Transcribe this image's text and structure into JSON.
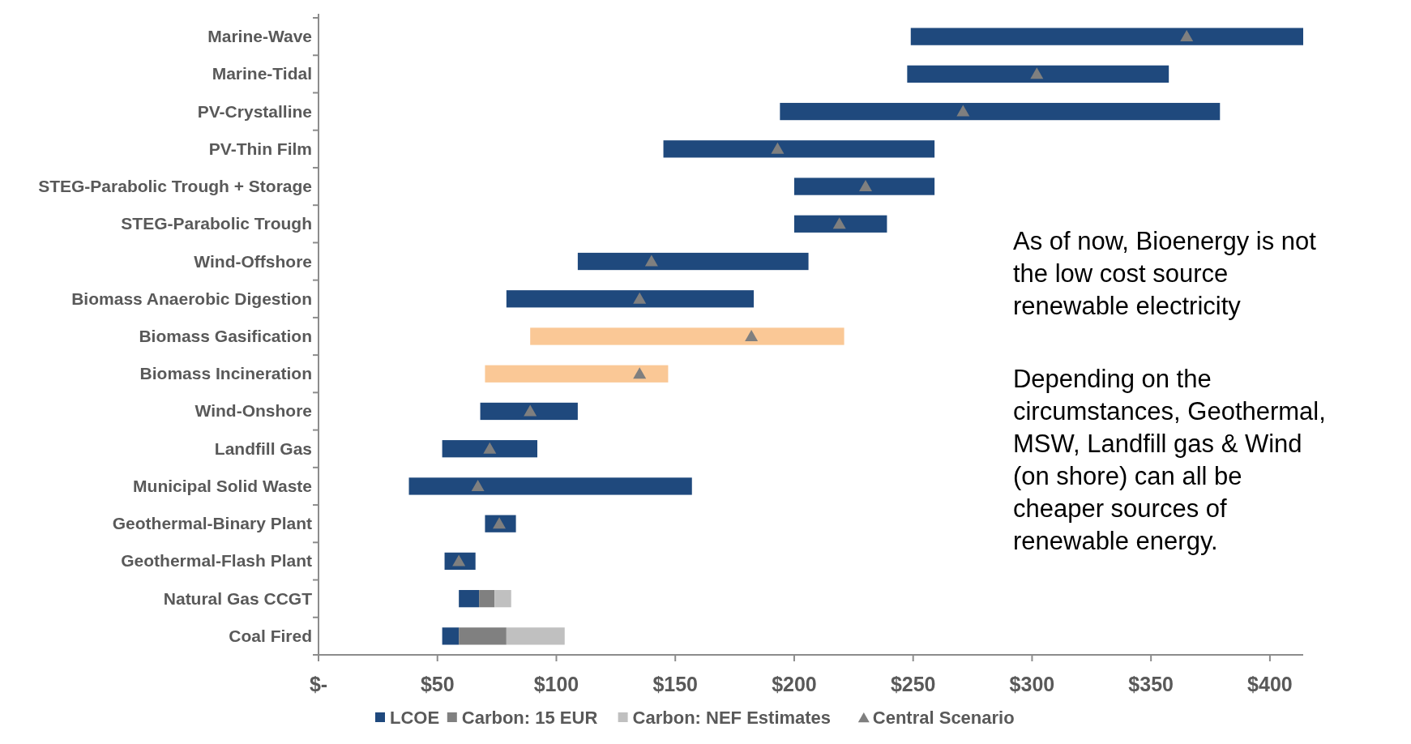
{
  "chart_data": {
    "type": "bar",
    "orientation": "horizontal",
    "stacked": true,
    "categories": [
      "Marine-Wave",
      "Marine-Tidal",
      "PV-Crystalline",
      "PV-Thin Film",
      "STEG-Parabolic Trough + Storage",
      "STEG-Parabolic Trough",
      "Wind-Offshore",
      "Biomass Anaerobic Digestion",
      "Biomass Gasification",
      "Biomass Incineration",
      "Wind-Onshore",
      "Landfill Gas",
      "Municipal Solid Waste",
      "Geothermal-Binary Plant",
      "Geothermal-Flash Plant",
      "Natural Gas CCGT",
      "Coal Fired"
    ],
    "series": [
      {
        "name": "LCOE",
        "color": "#1f497d",
        "base": [
          249,
          247.5,
          194,
          145,
          200,
          200,
          109,
          79,
          89,
          70,
          68,
          52,
          38,
          70,
          53,
          59,
          52
        ],
        "colors": [
          "#1f497d",
          "#1f497d",
          "#1f497d",
          "#1f497d",
          "#1f497d",
          "#1f497d",
          "#1f497d",
          "#1f497d",
          "#fac896",
          "#fac896",
          "#1f497d",
          "#1f497d",
          "#1f497d",
          "#1f497d",
          "#1f497d",
          "#1f497d",
          "#1f497d"
        ],
        "values": [
          165,
          110,
          185,
          114,
          59,
          39,
          97,
          104,
          132,
          77,
          41,
          40,
          119,
          13,
          13,
          8.5,
          7
        ]
      },
      {
        "name": "Carbon: 15 EUR",
        "color": "#808080",
        "values": [
          null,
          null,
          null,
          null,
          null,
          null,
          null,
          null,
          null,
          null,
          null,
          null,
          null,
          null,
          null,
          6.5,
          20
        ]
      },
      {
        "name": "Carbon: NEF Estimates",
        "color": "#c0c0c0",
        "values": [
          null,
          null,
          null,
          null,
          null,
          null,
          null,
          null,
          null,
          null,
          null,
          null,
          null,
          null,
          null,
          7,
          24.5
        ]
      },
      {
        "name": "Central Scenario",
        "type": "scatter",
        "color": "#7f7f7f",
        "x": [
          "Marine-Wave",
          "Marine-Tidal",
          "PV-Crystalline",
          "PV-Thin Film",
          "STEG-Parabolic Trough + Storage",
          "STEG-Parabolic Trough",
          "Wind-Offshore",
          "Biomass Anaerobic Digestion",
          "Biomass Gasification",
          "Biomass Incineration",
          "Wind-Onshore",
          "Landfill Gas",
          "Municipal Solid Waste",
          "Geothermal-Binary Plant",
          "Geothermal-Flash Plant"
        ],
        "values": [
          365,
          302,
          271,
          193,
          230,
          219,
          140,
          135,
          182,
          135,
          89,
          72,
          67,
          76,
          59
        ]
      }
    ],
    "marker": "triangle",
    "xlim": [
      0,
      414
    ],
    "xticks": [
      {
        "value": 0,
        "label": "$-"
      },
      {
        "value": 50,
        "label": "$50"
      },
      {
        "value": 100,
        "label": "$100"
      },
      {
        "value": 150,
        "label": "$150"
      },
      {
        "value": 200,
        "label": "$200"
      },
      {
        "value": 250,
        "label": "$250"
      },
      {
        "value": 300,
        "label": "$300"
      },
      {
        "value": 350,
        "label": "$350"
      },
      {
        "value": 400,
        "label": "$400"
      }
    ],
    "legend": "bottom",
    "annotations": [
      "As of now, Bioenergy is not the low cost source renewable electricity",
      "Depending on the circumstances, Geothermal, MSW, Landfill gas & Wind (on shore) can all be cheaper sources of renewable energy."
    ]
  }
}
